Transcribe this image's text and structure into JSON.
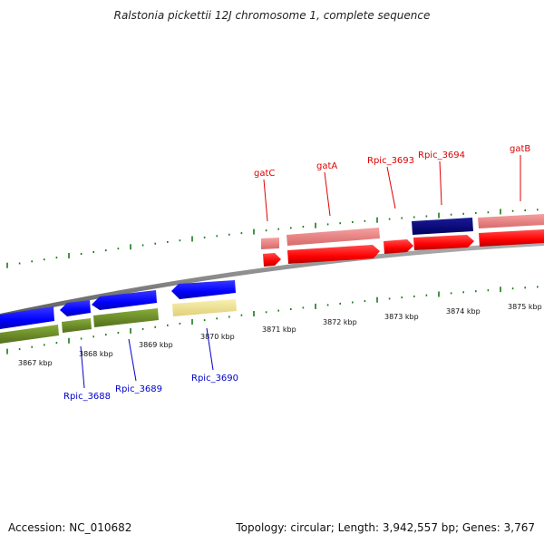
{
  "title": "Ralstonia pickettii 12J chromosome 1, complete sequence",
  "footer": {
    "accession": "Accession: NC_010682",
    "topology": "Topology: circular; Length: 3,942,557 bp; Genes: 3,767"
  },
  "ticks": [
    {
      "label": "3867 kbp"
    },
    {
      "label": "3868 kbp"
    },
    {
      "label": "3869 kbp"
    },
    {
      "label": "3870 kbp"
    },
    {
      "label": "3871 kbp"
    },
    {
      "label": "3872 kbp"
    },
    {
      "label": "3873 kbp"
    },
    {
      "label": "3874 kbp"
    },
    {
      "label": "3875 kbp"
    }
  ],
  "genes_forward": [
    {
      "label": "gatC"
    },
    {
      "label": "gatA"
    },
    {
      "label": "Rpic_3693"
    },
    {
      "label": "Rpic_3694"
    },
    {
      "label": "gatB"
    }
  ],
  "genes_reverse": [
    {
      "label": "Rpic_3688"
    },
    {
      "label": "Rpic_3689"
    },
    {
      "label": "Rpic_3690"
    }
  ],
  "colors": {
    "forward_cds": "#ff0000",
    "forward_feature": "#f08080",
    "reverse_cds": "#0000ff",
    "reverse_feature": "#6b8e23",
    "dark_feature": "#000080",
    "pale_feature": "#f0e68c",
    "backbone": "#808080",
    "tick_marks": "#1a7a1a"
  }
}
